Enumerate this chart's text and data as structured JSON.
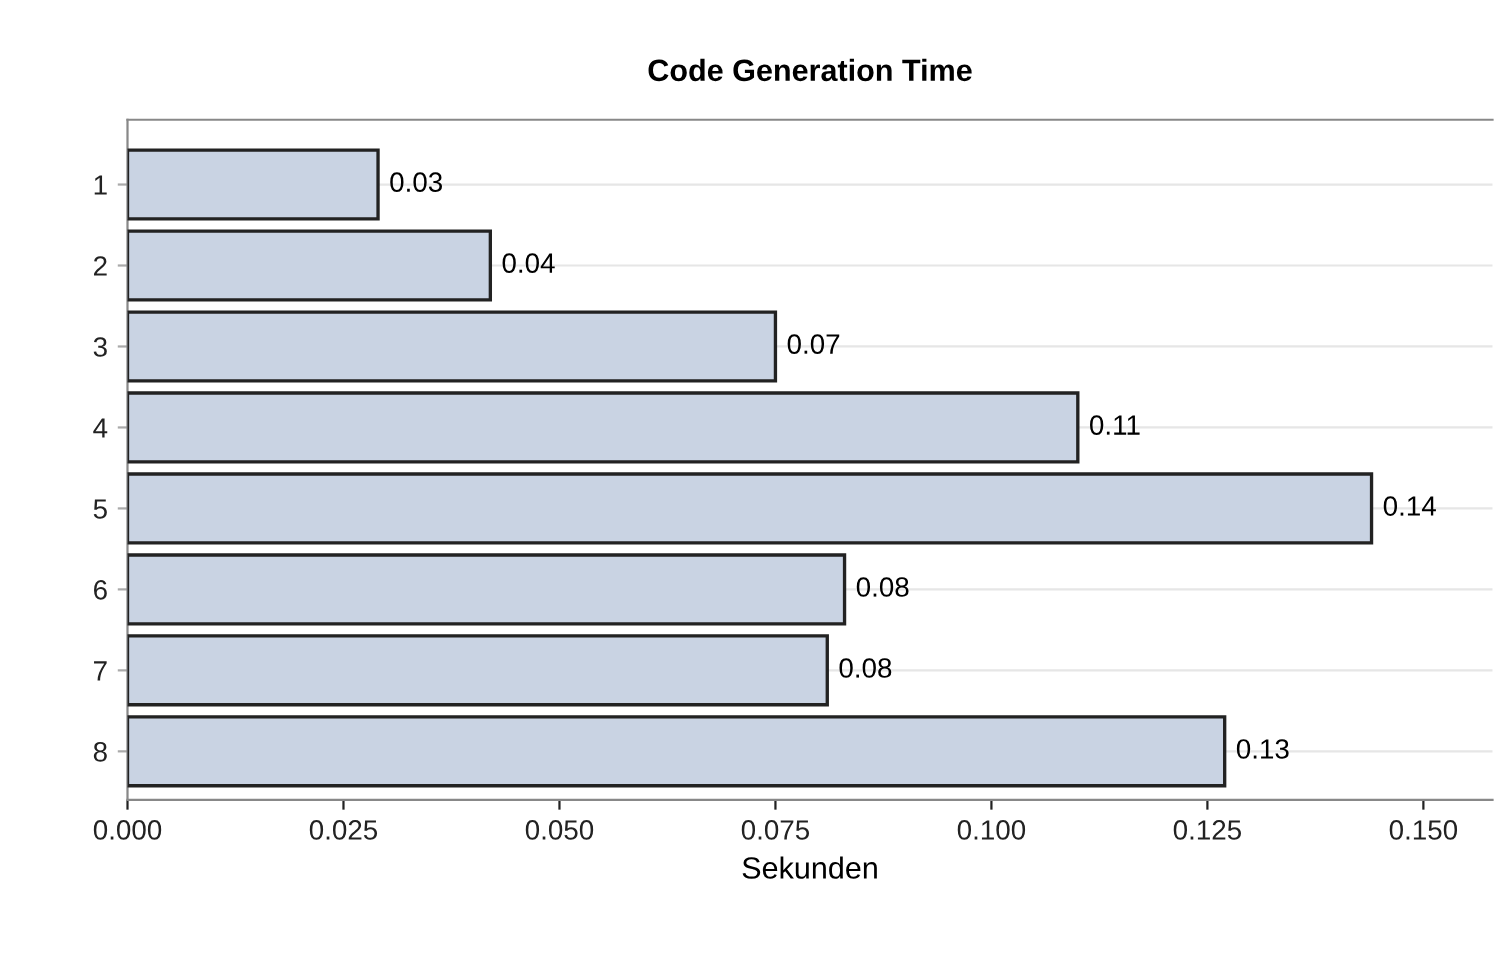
{
  "chart_data": {
    "type": "bar",
    "orientation": "horizontal",
    "title": "Code Generation Time",
    "xlabel": "Sekunden",
    "categories": [
      "1",
      "2",
      "3",
      "4",
      "5",
      "6",
      "7",
      "8"
    ],
    "values": [
      0.029,
      0.042,
      0.075,
      0.11,
      0.144,
      0.083,
      0.081,
      0.127
    ],
    "value_labels": [
      "0.03",
      "0.04",
      "0.07",
      "0.11",
      "0.14",
      "0.08",
      "0.08",
      "0.13"
    ],
    "color": "#c9d3e3",
    "xlim": [
      0,
      0.158
    ],
    "xticks": [
      {
        "value": 0,
        "label": "0.000"
      },
      {
        "value": 0.025,
        "label": "0.025"
      },
      {
        "value": 0.05,
        "label": "0.050"
      },
      {
        "value": 0.075,
        "label": "0.075"
      },
      {
        "value": 0.1,
        "label": "0.100"
      },
      {
        "value": 0.125,
        "label": "0.125"
      },
      {
        "value": 0.15,
        "label": "0.150"
      }
    ],
    "grid": "y"
  }
}
